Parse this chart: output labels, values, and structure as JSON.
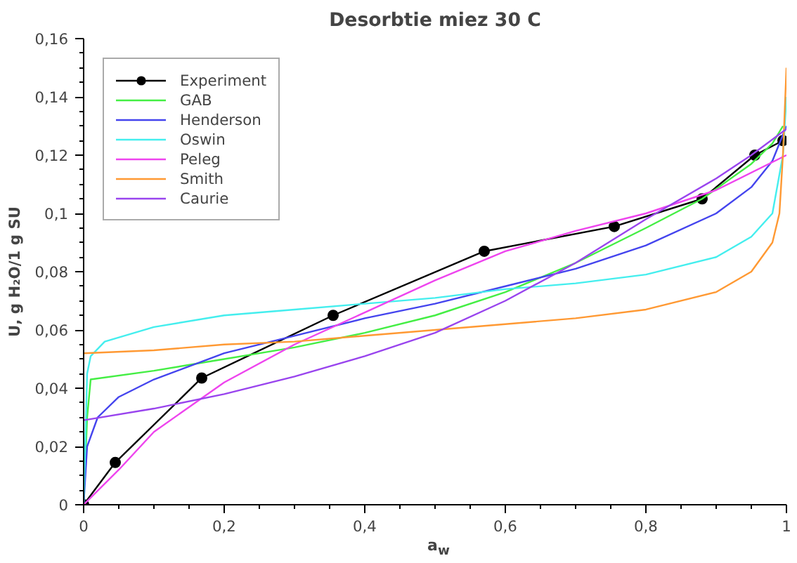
{
  "chart_data": {
    "type": "line",
    "title": "Desorbtie miez 30 C",
    "xlabel": "a$_{w}$",
    "ylabel": "U, g H₂O/1 g SU",
    "xlim": [
      0,
      1
    ],
    "ylim": [
      0,
      0.16
    ],
    "xticks": [
      {
        "value": 0,
        "label": "0"
      },
      {
        "value": 0.2,
        "label": "0,2"
      },
      {
        "value": 0.4,
        "label": "0,4"
      },
      {
        "value": 0.6,
        "label": "0,6"
      },
      {
        "value": 0.8,
        "label": "0,8"
      },
      {
        "value": 1,
        "label": "1"
      }
    ],
    "yticks": [
      {
        "value": 0,
        "label": "0"
      },
      {
        "value": 0.02,
        "label": "0,02"
      },
      {
        "value": 0.04,
        "label": "0,04"
      },
      {
        "value": 0.06,
        "label": "0,06"
      },
      {
        "value": 0.08,
        "label": "0,08"
      },
      {
        "value": 0.1,
        "label": "0,1"
      },
      {
        "value": 0.12,
        "label": "0,12"
      },
      {
        "value": 0.14,
        "label": "0,14"
      },
      {
        "value": 0.16,
        "label": "0,16"
      }
    ],
    "grid": false,
    "legend": "top left",
    "marker": "none",
    "series": [
      {
        "name": "Experiment",
        "color": "#000000",
        "marker": "circle",
        "x": [
          0,
          0.045,
          0.168,
          0.355,
          0.57,
          0.755,
          0.88,
          0.955,
          0.995
        ],
        "values": [
          0,
          0.0145,
          0.0435,
          0.065,
          0.087,
          0.0955,
          0.105,
          0.12,
          0.125
        ]
      },
      {
        "name": "GAB",
        "color": "#44ee44",
        "x": [
          0,
          0.005,
          0.01,
          0.1,
          0.2,
          0.3,
          0.4,
          0.5,
          0.6,
          0.7,
          0.8,
          0.88,
          0.95,
          0.98,
          0.995
        ],
        "values": [
          0,
          0.03,
          0.043,
          0.046,
          0.05,
          0.054,
          0.059,
          0.065,
          0.073,
          0.083,
          0.095,
          0.105,
          0.117,
          0.124,
          0.13
        ]
      },
      {
        "name": "Henderson",
        "color": "#4444ee",
        "x": [
          0,
          0.005,
          0.02,
          0.05,
          0.1,
          0.2,
          0.3,
          0.4,
          0.5,
          0.6,
          0.7,
          0.8,
          0.9,
          0.95,
          0.98,
          1
        ],
        "values": [
          0,
          0.02,
          0.03,
          0.037,
          0.043,
          0.052,
          0.058,
          0.064,
          0.069,
          0.075,
          0.081,
          0.089,
          0.1,
          0.109,
          0.118,
          0.13
        ]
      },
      {
        "name": "Oswin",
        "color": "#44eeee",
        "x": [
          0,
          0.005,
          0.01,
          0.03,
          0.1,
          0.2,
          0.3,
          0.4,
          0.5,
          0.6,
          0.7,
          0.8,
          0.9,
          0.95,
          0.98,
          0.995,
          1
        ],
        "values": [
          0,
          0.045,
          0.051,
          0.056,
          0.061,
          0.065,
          0.067,
          0.069,
          0.071,
          0.074,
          0.076,
          0.079,
          0.085,
          0.092,
          0.1,
          0.12,
          0.14
        ]
      },
      {
        "name": "Peleg",
        "color": "#ee44ee",
        "x": [
          0,
          0.05,
          0.1,
          0.2,
          0.3,
          0.4,
          0.5,
          0.6,
          0.7,
          0.8,
          0.9,
          1
        ],
        "values": [
          0,
          0.012,
          0.025,
          0.042,
          0.055,
          0.066,
          0.077,
          0.087,
          0.094,
          0.1,
          0.108,
          0.12
        ]
      },
      {
        "name": "Smith",
        "color": "#ff9933",
        "x": [
          0,
          0.1,
          0.2,
          0.3,
          0.4,
          0.5,
          0.6,
          0.7,
          0.8,
          0.9,
          0.95,
          0.98,
          0.99,
          0.995,
          1
        ],
        "values": [
          0.052,
          0.053,
          0.055,
          0.056,
          0.058,
          0.06,
          0.062,
          0.064,
          0.067,
          0.073,
          0.08,
          0.09,
          0.1,
          0.12,
          0.15
        ]
      },
      {
        "name": "Caurie",
        "color": "#9944ee",
        "x": [
          0,
          0.1,
          0.2,
          0.3,
          0.4,
          0.5,
          0.6,
          0.7,
          0.8,
          0.9,
          0.95,
          1
        ],
        "values": [
          0.029,
          0.033,
          0.038,
          0.044,
          0.051,
          0.059,
          0.07,
          0.083,
          0.098,
          0.112,
          0.12,
          0.129
        ]
      }
    ]
  }
}
